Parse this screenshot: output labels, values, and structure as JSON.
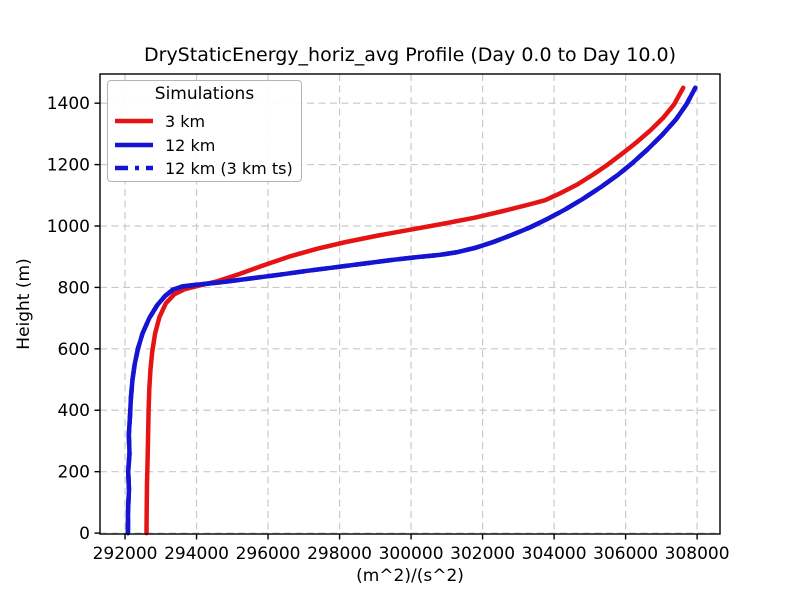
{
  "figure": {
    "title": "DryStaticEnergy_horiz_avg Profile (Day 0.0 to Day 10.0)",
    "xlabel": "(m^2)/(s^2)",
    "ylabel": "Height (m)"
  },
  "legend": {
    "title": "Simulations",
    "entries": [
      {
        "label": "3 km",
        "color": "#e51313",
        "style": "solid"
      },
      {
        "label": "12 km",
        "color": "#1414d2",
        "style": "solid"
      },
      {
        "label": "12 km (3 km ts)",
        "color": "#1414d2",
        "style": "dashed"
      }
    ]
  },
  "colors": {
    "red_line": "#e51313",
    "blue_line": "#1414d2",
    "grid": "#c9c9c9",
    "spine": "#000000",
    "background": "#ffffff"
  },
  "chart_data": {
    "type": "line",
    "title": "DryStaticEnergy_horiz_avg Profile (Day 0.0 to Day 10.0)",
    "xlabel": "(m^2)/(s^2)",
    "ylabel": "Height (m)",
    "xlim": [
      291300,
      308640
    ],
    "ylim": [
      -3,
      1495
    ],
    "xticks": [
      292000,
      294000,
      296000,
      298000,
      300000,
      302000,
      304000,
      306000,
      308000
    ],
    "yticks": [
      0,
      200,
      400,
      600,
      800,
      1000,
      1200,
      1400
    ],
    "grid": true,
    "grid_style": "dashed",
    "legend_position": "upper left",
    "series": [
      {
        "name": "3 km",
        "color": "#e51313",
        "style": "solid",
        "points": [
          [
            292600,
            0
          ],
          [
            292605,
            80
          ],
          [
            292615,
            160
          ],
          [
            292630,
            240
          ],
          [
            292645,
            320
          ],
          [
            292660,
            400
          ],
          [
            292680,
            470
          ],
          [
            292710,
            530
          ],
          [
            292760,
            590
          ],
          [
            292840,
            650
          ],
          [
            292960,
            703
          ],
          [
            293140,
            748
          ],
          [
            293380,
            778
          ],
          [
            293680,
            795
          ],
          [
            294080,
            806
          ],
          [
            294580,
            820
          ],
          [
            295180,
            843
          ],
          [
            295880,
            872
          ],
          [
            296580,
            900
          ],
          [
            297380,
            926
          ],
          [
            298180,
            948
          ],
          [
            299080,
            969
          ],
          [
            299980,
            988
          ],
          [
            300880,
            1007
          ],
          [
            301780,
            1027
          ],
          [
            302580,
            1049
          ],
          [
            303300,
            1070
          ],
          [
            303750,
            1084
          ],
          [
            304200,
            1108
          ],
          [
            304650,
            1135
          ],
          [
            305100,
            1168
          ],
          [
            305500,
            1200
          ],
          [
            305900,
            1235
          ],
          [
            306300,
            1272
          ],
          [
            306700,
            1312
          ],
          [
            307050,
            1352
          ],
          [
            307350,
            1395
          ],
          [
            307610,
            1450
          ]
        ]
      },
      {
        "name": "12 km",
        "color": "#1414d2",
        "style": "solid",
        "points": [
          [
            292080,
            0
          ],
          [
            292085,
            80
          ],
          [
            292110,
            140
          ],
          [
            292090,
            200
          ],
          [
            292125,
            260
          ],
          [
            292105,
            320
          ],
          [
            292140,
            380
          ],
          [
            292165,
            440
          ],
          [
            292210,
            500
          ],
          [
            292270,
            550
          ],
          [
            292360,
            600
          ],
          [
            292490,
            650
          ],
          [
            292680,
            700
          ],
          [
            292900,
            742
          ],
          [
            293120,
            772
          ],
          [
            293340,
            793
          ],
          [
            293600,
            803
          ],
          [
            294000,
            809
          ],
          [
            294700,
            817
          ],
          [
            295500,
            829
          ],
          [
            296300,
            841
          ],
          [
            297100,
            854
          ],
          [
            297900,
            866
          ],
          [
            298700,
            878
          ],
          [
            299500,
            890
          ],
          [
            300200,
            899
          ],
          [
            300800,
            906
          ],
          [
            301300,
            915
          ],
          [
            301800,
            929
          ],
          [
            302300,
            948
          ],
          [
            302800,
            970
          ],
          [
            303300,
            994
          ],
          [
            303800,
            1022
          ],
          [
            304300,
            1053
          ],
          [
            304800,
            1088
          ],
          [
            305300,
            1126
          ],
          [
            305800,
            1168
          ],
          [
            306200,
            1206
          ],
          [
            306600,
            1248
          ],
          [
            307000,
            1294
          ],
          [
            307400,
            1346
          ],
          [
            307700,
            1396
          ],
          [
            307950,
            1450
          ]
        ]
      },
      {
        "name": "12 km (3 km ts)",
        "color": "#1414d2",
        "style": "dashed",
        "points": [
          [
            292080,
            0
          ],
          [
            292085,
            80
          ],
          [
            292110,
            140
          ],
          [
            292090,
            200
          ],
          [
            292125,
            260
          ],
          [
            292105,
            320
          ],
          [
            292140,
            380
          ],
          [
            292165,
            440
          ],
          [
            292210,
            500
          ],
          [
            292270,
            550
          ],
          [
            292360,
            600
          ],
          [
            292490,
            650
          ],
          [
            292680,
            700
          ],
          [
            292900,
            742
          ],
          [
            293120,
            772
          ],
          [
            293340,
            793
          ],
          [
            293600,
            803
          ],
          [
            294000,
            809
          ],
          [
            294700,
            817
          ],
          [
            295500,
            829
          ],
          [
            296300,
            841
          ],
          [
            297100,
            854
          ],
          [
            297900,
            866
          ],
          [
            298700,
            878
          ],
          [
            299500,
            890
          ],
          [
            300200,
            899
          ],
          [
            300800,
            906
          ],
          [
            301300,
            915
          ],
          [
            301800,
            929
          ],
          [
            302300,
            948
          ],
          [
            302800,
            970
          ],
          [
            303300,
            994
          ],
          [
            303800,
            1022
          ],
          [
            304300,
            1053
          ],
          [
            304800,
            1088
          ],
          [
            305300,
            1126
          ],
          [
            305800,
            1168
          ],
          [
            306200,
            1206
          ],
          [
            306600,
            1248
          ],
          [
            307000,
            1294
          ],
          [
            307400,
            1346
          ],
          [
            307700,
            1396
          ],
          [
            307950,
            1450
          ]
        ]
      }
    ]
  }
}
